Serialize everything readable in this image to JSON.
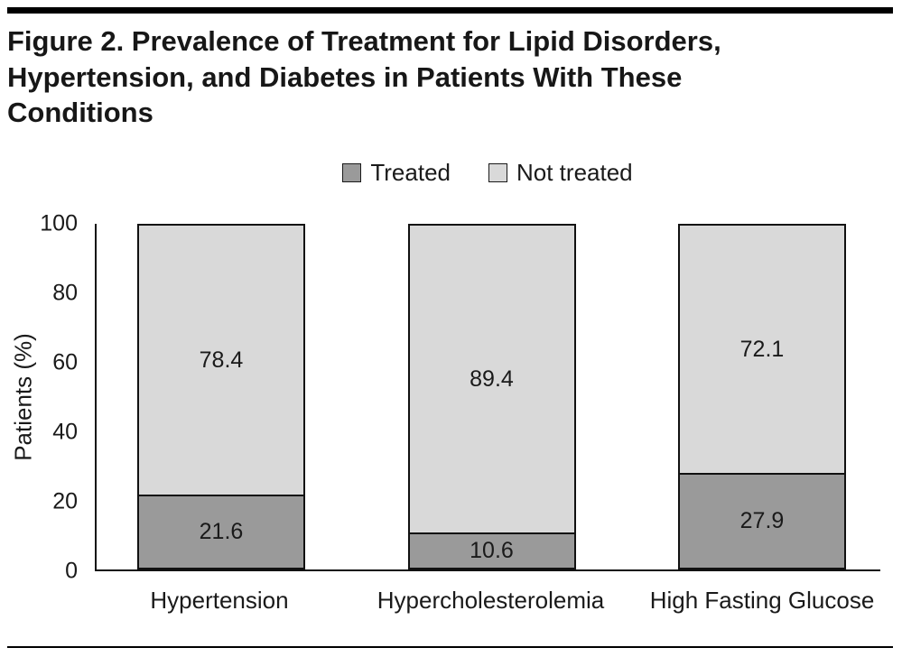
{
  "figure": {
    "title": "Figure 2. Prevalence of Treatment for Lipid Disorders, Hypertension, and Diabetes in Patients With These Conditions"
  },
  "legend": [
    {
      "label": "Treated",
      "color": "#9a9a9a"
    },
    {
      "label": "Not treated",
      "color": "#d9d9d9"
    }
  ],
  "chart_data": {
    "type": "bar",
    "stacked": true,
    "title": "Figure 2. Prevalence of Treatment for Lipid Disorders, Hypertension, and Diabetes in Patients With These Conditions",
    "categories": [
      "Hypertension",
      "Hypercholesterolemia",
      "High Fasting Glucose"
    ],
    "series": [
      {
        "name": "Treated",
        "color": "#9a9a9a",
        "values": [
          21.6,
          10.6,
          27.9
        ]
      },
      {
        "name": "Not treated",
        "color": "#d9d9d9",
        "values": [
          78.4,
          89.4,
          72.1
        ]
      }
    ],
    "xlabel": "",
    "ylabel": "Patients (%)",
    "ylim": [
      0,
      100
    ],
    "yticks": [
      0,
      20,
      40,
      60,
      80,
      100
    ],
    "grid": false,
    "legend_position": "top"
  }
}
